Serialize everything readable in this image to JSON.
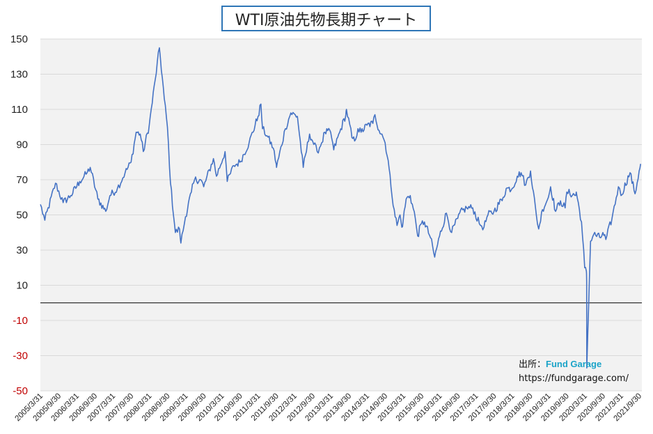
{
  "chart_data": {
    "type": "line",
    "title": "WTI原油先物長期チャート",
    "xlabel": "",
    "ylabel": "",
    "ylim": [
      -50,
      150
    ],
    "yticks": [
      150,
      130,
      110,
      90,
      70,
      50,
      30,
      10,
      -10,
      -30,
      -50
    ],
    "negative_tick_color": "#c00000",
    "line_color": "#4472c4",
    "zero_line_color": "#000000",
    "plot_background": "#f2f2f2",
    "grid": true,
    "xticks": [
      "2005/3/31",
      "2005/9/30",
      "2006/3/31",
      "2006/9/30",
      "2007/3/31",
      "2007/9/30",
      "2008/3/31",
      "2008/9/30",
      "2009/3/31",
      "2009/9/30",
      "2010/3/31",
      "2010/9/30",
      "2011/3/31",
      "2011/9/30",
      "2012/3/31",
      "2012/9/30",
      "2013/3/31",
      "2013/9/30",
      "2014/3/31",
      "2014/9/30",
      "2015/3/31",
      "2015/9/30",
      "2016/3/31",
      "2016/9/30",
      "2017/3/31",
      "2017/9/30",
      "2018/3/31",
      "2018/9/30",
      "2019/3/31",
      "2019/9/30",
      "2020/3/31",
      "2020/9/30",
      "2021/3/31",
      "2021/9/30"
    ],
    "series": [
      {
        "x": [
          "2005/3/31",
          "2005/5/15",
          "2005/8/30",
          "2005/11/15",
          "2006/1/31",
          "2006/5/1",
          "2006/7/15",
          "2006/8/15",
          "2006/10/31",
          "2007/1/18",
          "2007/3/1",
          "2007/5/15",
          "2007/8/1",
          "2007/9/30",
          "2007/11/20",
          "2007/12/31",
          "2008/1/31",
          "2008/3/31",
          "2008/5/30",
          "2008/7/11",
          "2008/8/29",
          "2008/9/30",
          "2008/10/31",
          "2008/12/19",
          "2009/1/30",
          "2009/2/12",
          "2009/3/31",
          "2009/5/29",
          "2009/6/30",
          "2009/8/31",
          "2009/9/30",
          "2010/1/6",
          "2010/2/5",
          "2010/5/3",
          "2010/5/25",
          "2010/7/30",
          "2010/9/30",
          "2010/12/31",
          "2011/3/31",
          "2011/4/29",
          "2011/5/15",
          "2011/6/30",
          "2011/8/31",
          "2011/9/30",
          "2011/10/3",
          "2011/12/31",
          "2012/2/24",
          "2012/4/30",
          "2012/6/28",
          "2012/8/31",
          "2012/9/30",
          "2012/11/15",
          "2012/12/31",
          "2013/1/31",
          "2013/3/31",
          "2013/5/1",
          "2013/6/30",
          "2013/8/31",
          "2013/9/6",
          "2013/10/31",
          "2013/11/27",
          "2013/12/31",
          "2014/1/31",
          "2014/3/31",
          "2014/5/30",
          "2014/6/20",
          "2014/7/31",
          "2014/8/29",
          "2014/9/30",
          "2014/10/31",
          "2014/11/28",
          "2014/12/31",
          "2015/1/28",
          "2015/2/27",
          "2015/3/17",
          "2015/3/31",
          "2015/4/30",
          "2015/6/10",
          "2015/7/31",
          "2015/8/24",
          "2015/9/30",
          "2015/10/31",
          "2015/12/31",
          "2016/2/11",
          "2016/3/31",
          "2016/6/8",
          "2016/7/31",
          "2016/9/30",
          "2016/10/19",
          "2016/12/30",
          "2017/2/28",
          "2017/5/5",
          "2017/6/21",
          "2017/7/31",
          "2017/9/30",
          "2017/12/31",
          "2018/1/31",
          "2018/3/31",
          "2018/5/22",
          "2018/6/30",
          "2018/8/15",
          "2018/10/3",
          "2018/11/30",
          "2018/12/24",
          "2019/1/31",
          "2019/3/31",
          "2019/4/23",
          "2019/6/12",
          "2019/7/31",
          "2019/9/16",
          "2019/10/3",
          "2019/12/31",
          "2020/1/6",
          "2020/2/28",
          "2020/3/31",
          "2020/4/17",
          "2020/4/20",
          "2020/4/21",
          "2020/5/29",
          "2020/6/30",
          "2020/9/8",
          "2020/9/30",
          "2020/10/30",
          "2020/12/31",
          "2021/3/5",
          "2021/3/31",
          "2021/6/30",
          "2021/8/20",
          "2021/9/30",
          "2021/10/15"
        ],
        "values": [
          56,
          47,
          68,
          57,
          61,
          69,
          74,
          77,
          59,
          52,
          61,
          65,
          74,
          80,
          97,
          96,
          86,
          101,
          127,
          145,
          116,
          100,
          68,
          40,
          42,
          34,
          49,
          63,
          70,
          70,
          66,
          82,
          72,
          86,
          69,
          78,
          80,
          91,
          106,
          113,
          99,
          95,
          88,
          79,
          77,
          99,
          108,
          106,
          77,
          96,
          92,
          86,
          91,
          97,
          97,
          87,
          97,
          107,
          110,
          94,
          92,
          99,
          97,
          101,
          102,
          107,
          98,
          96,
          91,
          81,
          66,
          53,
          44,
          50,
          43,
          47,
          59,
          61,
          48,
          38,
          45,
          46,
          37,
          26,
          38,
          51,
          40,
          48,
          51,
          54,
          54,
          45,
          43,
          50,
          52,
          60,
          65,
          65,
          72,
          74,
          67,
          75,
          50,
          42,
          53,
          60,
          66,
          52,
          58,
          54,
          63,
          61,
          63,
          46,
          20,
          18,
          12,
          -37,
          35,
          39,
          37,
          40,
          36,
          48,
          66,
          61,
          74,
          62,
          75,
          79
        ]
      }
    ]
  },
  "source": {
    "label": "出所：",
    "brand": "Fund Garage",
    "url": "https://fundgarage.com/"
  }
}
